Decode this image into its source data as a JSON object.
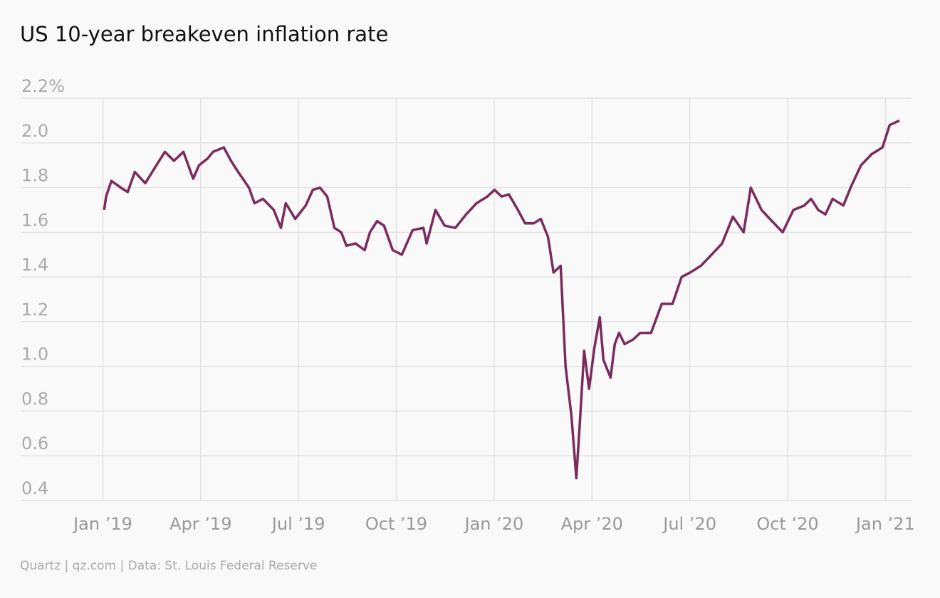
{
  "chart_data": {
    "type": "line",
    "title": "US 10-year breakeven inflation rate",
    "source": "Quartz | qz.com | Data: St. Louis Federal Reserve",
    "x": [
      0.04,
      0.1,
      0.26,
      0.55,
      0.76,
      0.98,
      1.3,
      1.64,
      1.9,
      2.18,
      2.47,
      2.62,
      2.77,
      2.95,
      3.21,
      3.38,
      3.71,
      3.93,
      4.15,
      4.48,
      4.65,
      4.91,
      5.24,
      5.46,
      5.61,
      5.9,
      6.22,
      6.44,
      6.66,
      6.88,
      7.1,
      7.31,
      7.47,
      7.75,
      8.03,
      8.19,
      8.41,
      8.62,
      8.89,
      9.17,
      9.5,
      9.83,
      9.93,
      10.2,
      10.48,
      10.81,
      11.14,
      11.46,
      11.79,
      12.01,
      12.23,
      12.45,
      12.73,
      12.95,
      13.21,
      13.43,
      13.65,
      13.82,
      14.04,
      14.19,
      14.37,
      14.52,
      14.63,
      14.76,
      14.91,
      15.07,
      15.24,
      15.35,
      15.57,
      15.7,
      15.83,
      16.0,
      16.26,
      16.48,
      16.81,
      17.14,
      17.47,
      17.75,
      18.01,
      18.34,
      18.67,
      18.99,
      19.32,
      19.65,
      19.87,
      20.2,
      20.52,
      20.85,
      21.18,
      21.51,
      21.72,
      21.94,
      22.16,
      22.38,
      22.71,
      22.93,
      23.25,
      23.58,
      23.91,
      24.13,
      24.43
    ],
    "series": [
      {
        "name": "US 10-year breakeven inflation rate",
        "color": "#7b2b5e",
        "values": [
          1.7,
          1.76,
          1.83,
          1.8,
          1.78,
          1.87,
          1.82,
          1.9,
          1.96,
          1.92,
          1.96,
          1.9,
          1.84,
          1.9,
          1.93,
          1.96,
          1.98,
          1.92,
          1.87,
          1.8,
          1.73,
          1.75,
          1.7,
          1.62,
          1.73,
          1.66,
          1.72,
          1.79,
          1.8,
          1.76,
          1.62,
          1.6,
          1.54,
          1.55,
          1.52,
          1.6,
          1.65,
          1.63,
          1.52,
          1.5,
          1.61,
          1.62,
          1.55,
          1.7,
          1.63,
          1.62,
          1.68,
          1.73,
          1.76,
          1.79,
          1.76,
          1.77,
          1.7,
          1.64,
          1.64,
          1.66,
          1.58,
          1.42,
          1.45,
          1.0,
          0.78,
          0.5,
          0.75,
          1.07,
          0.9,
          1.08,
          1.22,
          1.03,
          0.95,
          1.1,
          1.15,
          1.1,
          1.12,
          1.15,
          1.15,
          1.28,
          1.28,
          1.4,
          1.42,
          1.45,
          1.5,
          1.55,
          1.67,
          1.6,
          1.8,
          1.7,
          1.65,
          1.6,
          1.7,
          1.72,
          1.75,
          1.7,
          1.68,
          1.75,
          1.72,
          1.8,
          1.9,
          1.95,
          1.98,
          2.08,
          2.1
        ]
      }
    ],
    "xlim": [
      -2.5,
      24.8
    ],
    "xticks": [
      {
        "value": 0,
        "label": "Jan ’19"
      },
      {
        "value": 3,
        "label": "Apr ’19"
      },
      {
        "value": 6,
        "label": "Jul ’19"
      },
      {
        "value": 9,
        "label": "Oct ’19"
      },
      {
        "value": 12,
        "label": "Jan ’20"
      },
      {
        "value": 15,
        "label": "Apr ’20"
      },
      {
        "value": 18,
        "label": "Jul ’20"
      },
      {
        "value": 21,
        "label": "Oct ’20"
      },
      {
        "value": 24,
        "label": "Jan ’21"
      }
    ],
    "ylim": [
      0.4,
      2.2
    ],
    "yticks": [
      0.4,
      0.6,
      0.8,
      {
        "value": 1.0,
        "label": "1.0"
      },
      1.2,
      1.4,
      1.6,
      1.8,
      {
        "value": 2.0,
        "label": "2.0"
      },
      {
        "value": 2.2,
        "label": "2.2%"
      }
    ],
    "grid": true
  }
}
